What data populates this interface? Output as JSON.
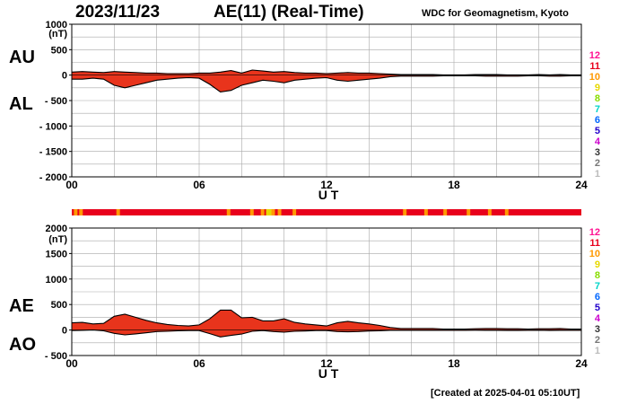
{
  "header": {
    "date": "2023/11/23",
    "title": "AE(11) (Real-Time)",
    "source": "WDC for Geomagnetism, Kyoto"
  },
  "footer": {
    "created": "[Created at 2025-04-01 05:10UT]"
  },
  "colors": {
    "fill": "#e8341c",
    "outline": "#000000",
    "grid": "#a8a8a8",
    "count_scale": {
      "12": "#ff1493",
      "11": "#e8001c",
      "10": "#ff9900",
      "9": "#e6d800",
      "8": "#88dd00",
      "7": "#00d4c8",
      "6": "#0066ff",
      "5": "#2200cc",
      "4": "#cc00cc",
      "3": "#333333",
      "2": "#777777",
      "1": "#bbbbbb"
    }
  },
  "station_count_labels": [
    "12",
    "11",
    "10",
    "9",
    "8",
    "7",
    "6",
    "5",
    "4",
    "3",
    "2",
    "1"
  ],
  "chart_data": [
    {
      "type": "area",
      "title": "AE(11) (Real-Time)",
      "xlabel": "U T",
      "ylabel": "(nT)",
      "xlim": [
        0,
        24
      ],
      "ylim": [
        -2000,
        1000
      ],
      "xticks": [
        "00",
        "06",
        "12",
        "18",
        "24"
      ],
      "yticks": [
        "1000",
        "500",
        "0",
        "- 500",
        "- 1000",
        "- 1500",
        "- 2000"
      ],
      "grid": true,
      "series": [
        {
          "name": "AU",
          "x": [
            0,
            0.5,
            1,
            1.5,
            2,
            2.5,
            3,
            3.5,
            4,
            4.5,
            5,
            5.5,
            6,
            6.5,
            7,
            7.5,
            8,
            8.5,
            9,
            9.5,
            10,
            10.5,
            11,
            11.5,
            12,
            12.5,
            13,
            13.5,
            14,
            14.5,
            15,
            15.5,
            16,
            16.5,
            17,
            17.5,
            18,
            18.5,
            19,
            19.5,
            20,
            20.5,
            21,
            21.5,
            22,
            22.5,
            23,
            23.5,
            24
          ],
          "values": [
            60,
            70,
            60,
            50,
            70,
            60,
            50,
            40,
            40,
            30,
            30,
            30,
            40,
            40,
            60,
            90,
            40,
            100,
            80,
            60,
            70,
            50,
            40,
            40,
            30,
            40,
            50,
            40,
            40,
            30,
            20,
            10,
            10,
            10,
            10,
            5,
            5,
            5,
            10,
            10,
            10,
            5,
            5,
            5,
            10,
            5,
            10,
            5,
            5
          ]
        },
        {
          "name": "AL",
          "x": [
            0,
            0.5,
            1,
            1.5,
            2,
            2.5,
            3,
            3.5,
            4,
            4.5,
            5,
            5.5,
            6,
            6.5,
            7,
            7.5,
            8,
            8.5,
            9,
            9.5,
            10,
            10.5,
            11,
            11.5,
            12,
            12.5,
            13,
            13.5,
            14,
            14.5,
            15,
            15.5,
            16,
            16.5,
            17,
            17.5,
            18,
            18.5,
            19,
            19.5,
            20,
            20.5,
            21,
            21.5,
            22,
            22.5,
            23,
            23.5,
            24
          ],
          "values": [
            -80,
            -80,
            -60,
            -80,
            -200,
            -250,
            -200,
            -150,
            -100,
            -80,
            -60,
            -50,
            -60,
            -180,
            -330,
            -300,
            -200,
            -150,
            -100,
            -120,
            -150,
            -100,
            -80,
            -60,
            -50,
            -100,
            -120,
            -100,
            -80,
            -60,
            -30,
            -20,
            -20,
            -20,
            -20,
            -15,
            -15,
            -15,
            -15,
            -20,
            -20,
            -20,
            -20,
            -15,
            -15,
            -20,
            -20,
            -15,
            -15
          ]
        }
      ],
      "labels": [
        "AU",
        "AL"
      ]
    },
    {
      "type": "area",
      "xlabel": "U T",
      "ylabel": "(nT)",
      "xlim": [
        0,
        24
      ],
      "ylim": [
        -500,
        2000
      ],
      "xticks": [
        "00",
        "06",
        "12",
        "18",
        "24"
      ],
      "yticks": [
        "2000",
        "1500",
        "1000",
        "500",
        "0",
        "- 500"
      ],
      "grid": true,
      "series": [
        {
          "name": "AE",
          "x": [
            0,
            0.5,
            1,
            1.5,
            2,
            2.5,
            3,
            3.5,
            4,
            4.5,
            5,
            5.5,
            6,
            6.5,
            7,
            7.5,
            8,
            8.5,
            9,
            9.5,
            10,
            10.5,
            11,
            11.5,
            12,
            12.5,
            13,
            13.5,
            14,
            14.5,
            15,
            15.5,
            16,
            16.5,
            17,
            17.5,
            18,
            18.5,
            19,
            19.5,
            20,
            20.5,
            21,
            21.5,
            22,
            22.5,
            23,
            23.5,
            24
          ],
          "values": [
            140,
            150,
            120,
            130,
            270,
            310,
            250,
            190,
            140,
            110,
            90,
            80,
            100,
            220,
            390,
            390,
            240,
            250,
            180,
            180,
            220,
            150,
            120,
            100,
            80,
            140,
            170,
            140,
            120,
            90,
            50,
            30,
            30,
            30,
            30,
            20,
            20,
            20,
            25,
            30,
            30,
            25,
            25,
            20,
            25,
            25,
            30,
            20,
            20
          ]
        },
        {
          "name": "AO",
          "x": [
            0,
            0.5,
            1,
            1.5,
            2,
            2.5,
            3,
            3.5,
            4,
            4.5,
            5,
            5.5,
            6,
            6.5,
            7,
            7.5,
            8,
            8.5,
            9,
            9.5,
            10,
            10.5,
            11,
            11.5,
            12,
            12.5,
            13,
            13.5,
            14,
            14.5,
            15,
            15.5,
            16,
            16.5,
            17,
            17.5,
            18,
            18.5,
            19,
            19.5,
            20,
            20.5,
            21,
            21.5,
            22,
            22.5,
            23,
            23.5,
            24
          ],
          "values": [
            -10,
            -5,
            0,
            -15,
            -65,
            -95,
            -75,
            -55,
            -30,
            -25,
            -15,
            -10,
            -10,
            -70,
            -135,
            -105,
            -80,
            -25,
            -10,
            -30,
            -40,
            -25,
            -20,
            -10,
            -10,
            -30,
            -35,
            -30,
            -20,
            -15,
            -5,
            -5,
            -5,
            -5,
            -5,
            -5,
            -5,
            -5,
            -3,
            -5,
            -5,
            -8,
            -8,
            -5,
            -3,
            -8,
            -5,
            -5,
            -5
          ]
        }
      ],
      "labels": [
        "AE",
        "AO"
      ]
    }
  ]
}
